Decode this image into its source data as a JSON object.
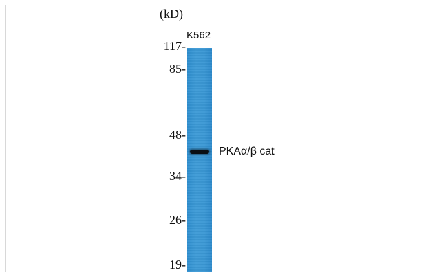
{
  "blot": {
    "unit_label": "(kD)",
    "lane_label": "K562",
    "markers": [
      "117-",
      "85-",
      "48-",
      "34-",
      "26-",
      "19-"
    ],
    "band_label": "PKAα/β cat",
    "lane_color": "#3a97d4",
    "band_color": "#0a0f14"
  }
}
